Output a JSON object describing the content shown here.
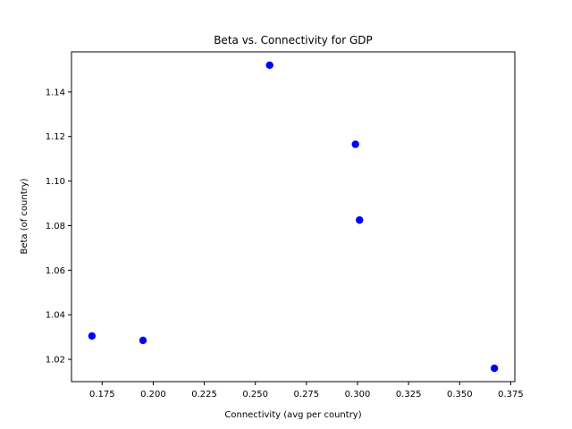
{
  "chart_data": {
    "type": "scatter",
    "title": "Beta vs. Connectivity for GDP",
    "xlabel": "Connectivity (avg per country)",
    "ylabel": "Beta (of country)",
    "xlim": [
      0.16,
      0.377
    ],
    "ylim": [
      1.01,
      1.158
    ],
    "xticks": [
      0.175,
      0.2,
      0.225,
      0.25,
      0.275,
      0.3,
      0.325,
      0.35,
      0.375
    ],
    "xtick_labels": [
      "0.175",
      "0.200",
      "0.225",
      "0.250",
      "0.275",
      "0.300",
      "0.325",
      "0.350",
      "0.375"
    ],
    "yticks": [
      1.02,
      1.04,
      1.06,
      1.08,
      1.1,
      1.12,
      1.14
    ],
    "ytick_labels": [
      "1.02",
      "1.04",
      "1.06",
      "1.08",
      "1.10",
      "1.12",
      "1.14"
    ],
    "grid": false,
    "marker_color": "#0000ff",
    "points": [
      {
        "x": 0.17,
        "y": 1.0305
      },
      {
        "x": 0.195,
        "y": 1.0285
      },
      {
        "x": 0.257,
        "y": 1.152
      },
      {
        "x": 0.299,
        "y": 1.1165
      },
      {
        "x": 0.301,
        "y": 1.0825
      },
      {
        "x": 0.367,
        "y": 1.016
      }
    ]
  }
}
